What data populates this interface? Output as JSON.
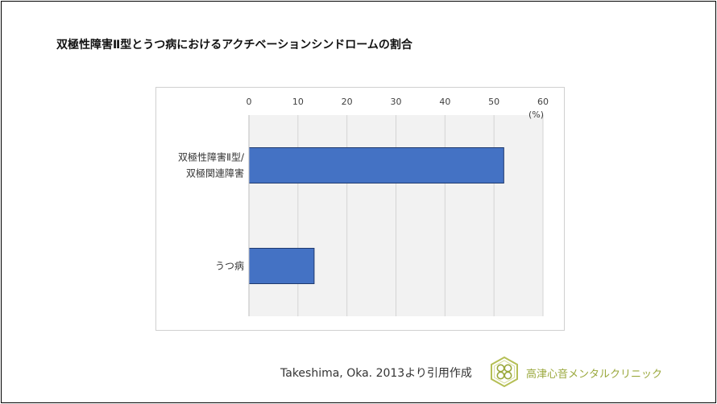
{
  "title": "双極性障害Ⅱ型とうつ病におけるアクチベーションシンドロームの割合",
  "chart_data": {
    "type": "bar",
    "orientation": "horizontal",
    "categories": [
      [
        "双極性障害Ⅱ型/",
        "双極関連障害"
      ],
      [
        "うつ病"
      ]
    ],
    "values": [
      52,
      13.3
    ],
    "xlim": [
      0,
      60
    ],
    "x_ticks": [
      "0",
      "10",
      "20",
      "30",
      "40",
      "50",
      "60"
    ],
    "x_unit": "(%)",
    "x_axis_position": "top",
    "grid": true,
    "bar_color": "#4472c4",
    "bar_border": "#1f3a6e",
    "plot_bg": "#f2f2f2"
  },
  "citation": "Takeshima, Oka. 2013より引用作成",
  "clinic": {
    "name": "高津心音メンタルクリニック",
    "logo_icon": "hexagon-clover-logo",
    "color": "#9aa83c"
  }
}
